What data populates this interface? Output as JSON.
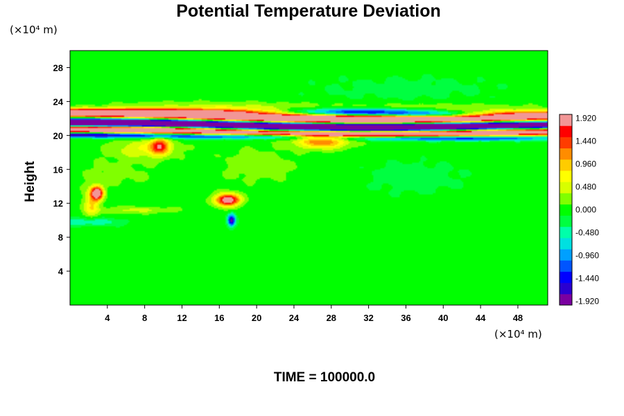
{
  "chart_data": {
    "type": "heatmap",
    "title": "Potential Temperature Deviation",
    "xlabel": "",
    "ylabel": "Height",
    "x_unit": "(×10⁴ m)",
    "y_unit": "(×10⁴ m)",
    "xlim": [
      0,
      51.2
    ],
    "ylim": [
      0,
      30
    ],
    "x_ticks": [
      "4",
      "8",
      "12",
      "16",
      "20",
      "24",
      "28",
      "32",
      "36",
      "40",
      "44",
      "48"
    ],
    "y_ticks": [
      "4",
      "8",
      "12",
      "16",
      "20",
      "24",
      "28"
    ],
    "colorbar": {
      "range": [
        -2.0,
        2.0
      ],
      "labels": [
        "1.920",
        "1.440",
        "0.960",
        "0.480",
        "0.000",
        "-0.480",
        "-0.960",
        "-1.440",
        "-1.920"
      ]
    },
    "background_value": 0.0,
    "features": [
      {
        "x": 0,
        "y": 22.7,
        "sx": 9,
        "sy": 0.3,
        "value": 2.2
      },
      {
        "x": 10,
        "y": 22.6,
        "sx": 9,
        "sy": 0.3,
        "value": 2.2
      },
      {
        "x": 20,
        "y": 22.1,
        "sx": 8,
        "sy": 0.3,
        "value": 2.2
      },
      {
        "x": 30,
        "y": 21.8,
        "sx": 9,
        "sy": 0.3,
        "value": 2.2
      },
      {
        "x": 40,
        "y": 21.9,
        "sx": 9,
        "sy": 0.3,
        "value": 2.2
      },
      {
        "x": 51,
        "y": 22.4,
        "sx": 9,
        "sy": 0.3,
        "value": 2.2
      },
      {
        "x": 0,
        "y": 21.5,
        "sx": 9,
        "sy": 0.35,
        "value": -2.2
      },
      {
        "x": 10,
        "y": 21.4,
        "sx": 9,
        "sy": 0.35,
        "value": -2.2
      },
      {
        "x": 20,
        "y": 21.0,
        "sx": 8,
        "sy": 0.35,
        "value": -2.2
      },
      {
        "x": 30,
        "y": 20.7,
        "sx": 9,
        "sy": 0.35,
        "value": -2.2
      },
      {
        "x": 40,
        "y": 20.9,
        "sx": 9,
        "sy": 0.35,
        "value": -2.2
      },
      {
        "x": 51,
        "y": 21.3,
        "sx": 9,
        "sy": 0.35,
        "value": -2.2
      },
      {
        "x": 0,
        "y": 20.8,
        "sx": 9,
        "sy": 0.3,
        "value": 2.2
      },
      {
        "x": 10,
        "y": 20.7,
        "sx": 9,
        "sy": 0.3,
        "value": 2.2
      },
      {
        "x": 20,
        "y": 20.4,
        "sx": 8,
        "sy": 0.3,
        "value": 2.2
      },
      {
        "x": 30,
        "y": 20.0,
        "sx": 9,
        "sy": 0.3,
        "value": 2.2
      },
      {
        "x": 40,
        "y": 20.3,
        "sx": 9,
        "sy": 0.3,
        "value": 2.2
      },
      {
        "x": 51,
        "y": 20.6,
        "sx": 9,
        "sy": 0.3,
        "value": 2.2
      },
      {
        "x": 0,
        "y": 20.1,
        "sx": 9,
        "sy": 0.22,
        "value": -2.0
      },
      {
        "x": 20,
        "y": 19.9,
        "sx": 9,
        "sy": 0.22,
        "value": -2.0
      },
      {
        "x": 40,
        "y": 19.7,
        "sx": 9,
        "sy": 0.22,
        "value": -2.0
      },
      {
        "x": 31,
        "y": 22.7,
        "sx": 6,
        "sy": 0.35,
        "value": -2.0
      },
      {
        "x": 40,
        "y": 22.4,
        "sx": 4,
        "sy": 0.3,
        "value": -1.6
      },
      {
        "x": 15,
        "y": 23.2,
        "sx": 8,
        "sy": 0.5,
        "value": 0.5
      },
      {
        "x": 38,
        "y": 23.0,
        "sx": 9,
        "sy": 0.5,
        "value": 0.5
      },
      {
        "x": 27,
        "y": 19.3,
        "sx": 2,
        "sy": 0.6,
        "value": 1.3
      },
      {
        "x": 9.6,
        "y": 18.8,
        "sx": 0.7,
        "sy": 0.7,
        "value": 1.4
      },
      {
        "x": 8,
        "y": 18.4,
        "sx": 2.5,
        "sy": 0.8,
        "value": 0.6
      },
      {
        "x": 2.9,
        "y": 13.2,
        "sx": 0.45,
        "sy": 0.55,
        "value": 2.3
      },
      {
        "x": 2.3,
        "y": 12.0,
        "sx": 0.6,
        "sy": 1.2,
        "value": 0.8
      },
      {
        "x": 16.9,
        "y": 12.4,
        "sx": 0.9,
        "sy": 0.5,
        "value": 2.3
      },
      {
        "x": 17.3,
        "y": 10.0,
        "sx": 0.3,
        "sy": 0.5,
        "value": -1.8
      },
      {
        "x": 2.0,
        "y": 9.8,
        "sx": 2.5,
        "sy": 0.35,
        "value": -0.6
      },
      {
        "x": 7,
        "y": 11.2,
        "sx": 3,
        "sy": 0.3,
        "value": 0.4
      },
      {
        "x": 20,
        "y": 16.5,
        "sx": 3,
        "sy": 1.5,
        "value": 0.25
      },
      {
        "x": 37,
        "y": 15.0,
        "sx": 4,
        "sy": 1.5,
        "value": -0.25
      },
      {
        "x": 5,
        "y": 15.5,
        "sx": 3,
        "sy": 1.2,
        "value": 0.2
      },
      {
        "x": 36,
        "y": 25.5,
        "sx": 8,
        "sy": 1.2,
        "value": -0.2
      }
    ]
  },
  "footer": {
    "time_label": "TIME = 100000.0"
  }
}
